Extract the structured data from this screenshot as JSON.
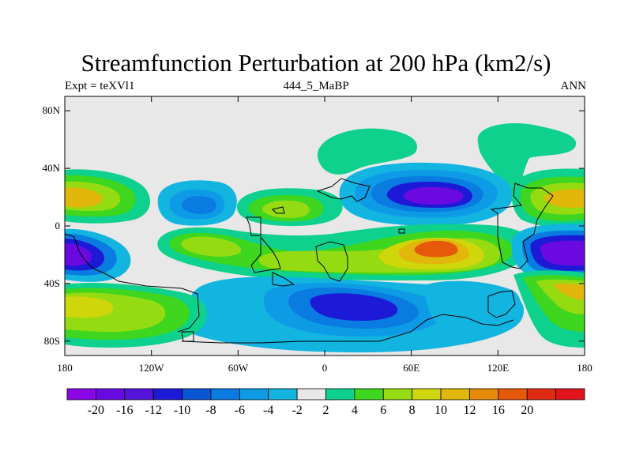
{
  "header": {
    "title": "Streamfunction Perturbation at 200 hPa (km2/s)",
    "left": "Expt = teXVl1",
    "center": "444_5_MaBP",
    "right": "ANN"
  },
  "map": {
    "projection": "cylindrical-equidistant",
    "lon_range": [
      -180,
      180
    ],
    "lat_range": [
      -90,
      90
    ],
    "lat_ticks": [
      {
        "value": 80,
        "label": "80N"
      },
      {
        "value": 40,
        "label": "40N"
      },
      {
        "value": 0,
        "label": "0"
      },
      {
        "value": -40,
        "label": "40S"
      },
      {
        "value": -80,
        "label": "80S"
      }
    ],
    "lon_ticks": [
      {
        "value": -180,
        "label": "180"
      },
      {
        "value": -120,
        "label": "120W"
      },
      {
        "value": -60,
        "label": "60W"
      },
      {
        "value": 0,
        "label": "0"
      },
      {
        "value": 60,
        "label": "60E"
      },
      {
        "value": 120,
        "label": "120E"
      },
      {
        "value": 180,
        "label": "180"
      }
    ],
    "background_color": "#e8e8e8",
    "coastline_color": "#000000"
  },
  "colorbar": {
    "colors": [
      "#8a06e6",
      "#6b0ae0",
      "#5412db",
      "#1c1ad6",
      "#0a54d6",
      "#0a7be0",
      "#0d9be6",
      "#12b4e0",
      "#e8e8e8",
      "#0dd18c",
      "#3ed61e",
      "#95db12",
      "#cfd60a",
      "#e0b70a",
      "#e68a0a",
      "#e6580a",
      "#e02b12",
      "#e0141a"
    ],
    "labels": [
      "-20",
      "-16",
      "-12",
      "-10",
      "-8",
      "-6",
      "-4",
      "-2",
      "2",
      "4",
      "6",
      "8",
      "10",
      "12",
      "16",
      "20"
    ]
  },
  "chart_data": {
    "type": "heatmap",
    "title": "Streamfunction Perturbation at 200 hPa (km2/s)",
    "variable": "streamfunction perturbation",
    "level": "200 hPa",
    "units": "km2/s",
    "contour_levels": [
      -20,
      -16,
      -12,
      -10,
      -8,
      -6,
      -4,
      -2,
      2,
      4,
      6,
      8,
      10,
      12,
      16,
      20
    ],
    "features": [
      {
        "lon": 80,
        "lat": 22,
        "value": -16
      },
      {
        "lon": 165,
        "lat": -22,
        "value": -16
      },
      {
        "lon": -170,
        "lat": -25,
        "value": -16
      },
      {
        "lon": 75,
        "lat": -15,
        "value": 14
      },
      {
        "lon": -170,
        "lat": 22,
        "value": 11
      },
      {
        "lon": 0,
        "lat": -50,
        "value": -9
      },
      {
        "lon": 80,
        "lat": 60,
        "value": 3
      },
      {
        "lon": -30,
        "lat": 15,
        "value": 8
      }
    ]
  }
}
